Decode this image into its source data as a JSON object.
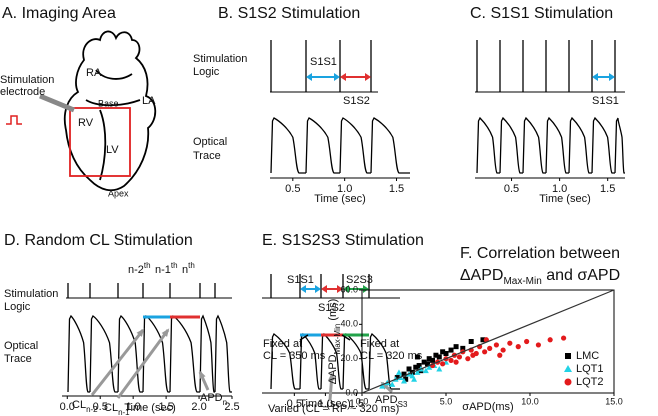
{
  "panels": {
    "a": {
      "title": "A. Imaging Area",
      "ra": "RA",
      "la": "LA",
      "rv": "RV",
      "lv": "LV",
      "base": "Base",
      "apex": "Apex",
      "electrode": [
        "Stimulation",
        "electrode"
      ]
    },
    "b": {
      "title": "B. S1S2 Stimulation",
      "stim_label": [
        "Stimulation",
        "Logic"
      ],
      "trace_label": [
        "Optical",
        "Trace"
      ],
      "s1s1": "S1S1",
      "s1s2": "S1S2",
      "xlim": [
        0.28,
        1.63
      ],
      "xticks": [
        0.5,
        {
          "value": 1,
          "label": "1.0"
        },
        1.5
      ],
      "xlabel": "Time (sec)"
    },
    "c": {
      "title": "C. S1S1 Stimulation",
      "s1s1": "S1S1",
      "xlim": [
        0.12,
        1.68
      ],
      "xticks": [
        0.5,
        {
          "value": 1,
          "label": "1.0"
        },
        1.5
      ],
      "xlabel": "Time (sec)"
    },
    "d": {
      "title": "D. Random CL Stimulation",
      "stim_label": [
        "Stimulation",
        "Logic"
      ],
      "trace_label": [
        "Optical",
        "Trace"
      ],
      "beats": [
        {
          "base": "n-2",
          "sup": "th"
        },
        {
          "base": "n-1",
          "sup": "th"
        },
        {
          "base": "n",
          "sup": "th"
        }
      ],
      "cl_prev2": {
        "base": "CL",
        "sub": "n-2"
      },
      "cl_prev1": {
        "base": "CL",
        "sub": "n-1"
      },
      "apd": {
        "base": "APD",
        "sub": "n"
      },
      "xlim": [
        -0.08,
        2.5
      ],
      "xticks": [
        {
          "value": 0,
          "label": "0.0"
        },
        0.5,
        {
          "value": 1,
          "label": "1.0"
        },
        1.5,
        {
          "value": 2,
          "label": "2.0"
        },
        2.5
      ],
      "xlabel": "Time (sec)"
    },
    "e": {
      "title": "E. S1S2S3 Stimulation",
      "s1s1": "S1S1",
      "s2s3": "S2S3",
      "s1s2": "S1S2",
      "fixed_s1": [
        "Fixed at",
        "CL = 350 ms"
      ],
      "fixed_s3": [
        "Fixed at",
        "CL = 320 ms"
      ],
      "varied": "Varied (CL = RP ~ 320 ms)",
      "apd": {
        "base": "APD",
        "sub": "S3"
      },
      "xlim": [
        -0.02,
        2.2
      ],
      "xticks": [
        0.5,
        {
          "value": 1,
          "label": "1.0"
        },
        1.5
      ],
      "xlabel": "Time (sec)"
    }
  },
  "chart_data": {
    "type": "scatter",
    "title": [
      "F. Correlation between",
      {
        "base": "ΔAPD",
        "sub": "Max-Min",
        "rest": " and σAPD"
      }
    ],
    "xlabel": "σAPD(ms)",
    "ylabel": {
      "base": "ΔAPD",
      "sub": "Max-Min",
      "rest": " (ms)"
    },
    "xlim": [
      0,
      15
    ],
    "ylim": [
      0,
      60
    ],
    "xticks": [
      {
        "value": 0,
        "label": "0.0"
      },
      {
        "value": 5,
        "label": "5.0"
      },
      {
        "value": 10,
        "label": "10.0"
      },
      {
        "value": 15,
        "label": "15.0"
      }
    ],
    "yticks": [
      {
        "value": 0,
        "label": "0.0"
      },
      {
        "value": 20,
        "label": "20.0"
      },
      {
        "value": 40,
        "label": "40.0"
      },
      {
        "value": 60,
        "label": "60.0"
      }
    ],
    "trend_line": {
      "x": [
        0,
        15
      ],
      "y": [
        0,
        60
      ]
    },
    "series": [
      {
        "name": "LMC",
        "color": "#000000",
        "marker": "square",
        "x": [
          2.1,
          2.5,
          2.8,
          3.0,
          3.2,
          3.4,
          3.5,
          3.7,
          3.9,
          4.0,
          4.2,
          4.4,
          4.6,
          4.8,
          5.0,
          5.3,
          5.6,
          6.0,
          6.5,
          7.2,
          2.6,
          3.3
        ],
        "values": [
          9,
          11,
          14,
          12,
          15,
          16,
          13,
          18,
          17,
          20,
          19,
          22,
          21,
          24,
          23,
          25,
          27,
          26,
          30,
          31,
          8,
          21
        ]
      },
      {
        "name": "LQT1",
        "color": "#22d3e6",
        "marker": "triangle",
        "x": [
          1.2,
          1.5,
          1.8,
          2.0,
          2.3,
          2.5,
          2.8,
          3.0,
          3.3,
          3.5,
          3.8,
          4.0,
          4.3,
          4.6,
          5.0,
          2.2,
          3.1
        ],
        "values": [
          4,
          6,
          5,
          8,
          9,
          7,
          11,
          10,
          12,
          14,
          13,
          15,
          16,
          14,
          18,
          12,
          8
        ]
      },
      {
        "name": "LQT2",
        "color": "#e31a1c",
        "marker": "circle",
        "x": [
          4.2,
          4.5,
          4.8,
          5.0,
          5.3,
          5.5,
          5.8,
          6.0,
          6.3,
          6.5,
          6.8,
          7.0,
          7.3,
          7.6,
          8.0,
          8.4,
          8.8,
          9.3,
          9.8,
          10.5,
          11.2,
          12.0,
          5.6,
          6.6,
          7.4,
          8.2
        ],
        "values": [
          16,
          18,
          17,
          20,
          19,
          22,
          21,
          24,
          20,
          25,
          23,
          27,
          24,
          26,
          28,
          25,
          29,
          27,
          30,
          28,
          31,
          32,
          18,
          22,
          31,
          22
        ]
      }
    ]
  }
}
